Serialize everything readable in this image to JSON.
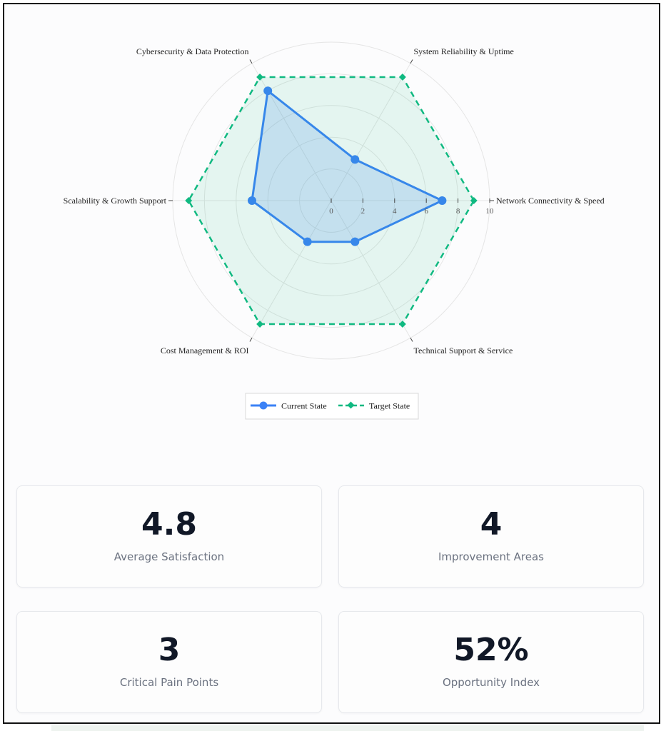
{
  "chart_data": {
    "type": "radar",
    "axes": [
      "Network Connectivity & Speed",
      "System Reliability & Uptime",
      "Cybersecurity & Data Protection",
      "Scalability & Growth Support",
      "Cost Management & ROI",
      "Technical Support & Service"
    ],
    "radial_range": [
      0,
      10
    ],
    "radial_ticks": [
      "0",
      "2",
      "4",
      "6",
      "8",
      "10"
    ],
    "grid": true,
    "series": [
      {
        "name": "Current State",
        "values": [
          7,
          3,
          8,
          5,
          3,
          3
        ],
        "color": "#3b82f6",
        "fill": "rgba(59,130,246,0.18)",
        "line": "solid",
        "marker": "circle"
      },
      {
        "name": "Target State",
        "values": [
          9,
          9,
          9,
          9,
          9,
          9
        ],
        "color": "#10b981",
        "fill": "rgba(16,185,129,0.10)",
        "line": "dashed",
        "marker": "diamond"
      }
    ],
    "legend_position": "bottom-center"
  },
  "stats": [
    {
      "value": "4.8",
      "label": "Average Satisfaction"
    },
    {
      "value": "4",
      "label": "Improvement Areas"
    },
    {
      "value": "3",
      "label": "Critical Pain Points"
    },
    {
      "value": "52%",
      "label": "Opportunity Index"
    }
  ]
}
